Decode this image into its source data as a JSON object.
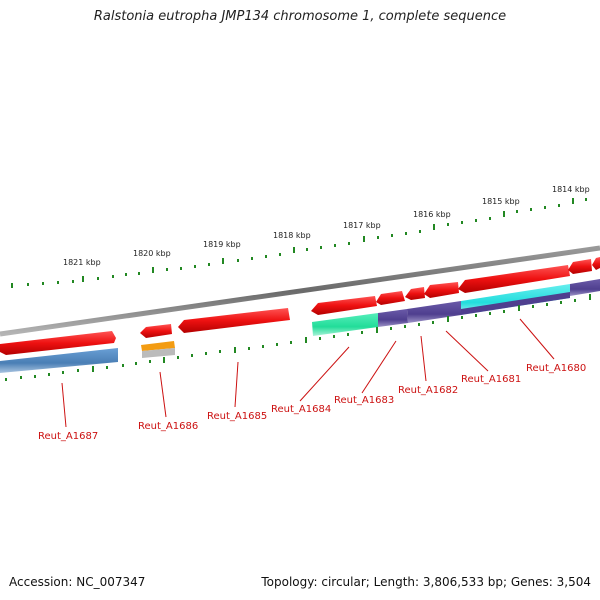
{
  "title": "Ralstonia eutropha JMP134 chromosome 1, complete sequence",
  "accession": "Accession: NC_007347",
  "summary": "Topology: circular; Length: 3,806,533 bp; Genes: 3,504",
  "kbp_labels": [
    "1821 kbp",
    "1820 kbp",
    "1819 kbp",
    "1818 kbp",
    "1817 kbp",
    "1816 kbp",
    "1815 kbp",
    "1814 kbp"
  ],
  "gene_labels": [
    "Reut_A1687",
    "Reut_A1686",
    "Reut_A1685",
    "Reut_A1684",
    "Reut_A1683",
    "Reut_A1682",
    "Reut_A1681",
    "Reut_A1680"
  ],
  "colors": {
    "backbone": "#7a7a7a",
    "gene_arrow": "#ee1111",
    "tick": "#228822",
    "label_line": "#cc1111",
    "steelblue_bar": "#4a7fb5",
    "orange_bar": "#f39c12",
    "green_bar": "#22dd99",
    "purple_bar": "#4f3f8f",
    "cyan_bar": "#22dddd"
  }
}
